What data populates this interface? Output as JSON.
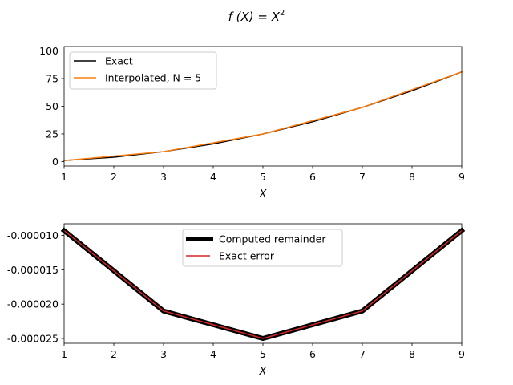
{
  "figure": {
    "title_prefix": "f (X) = X",
    "title_superscript": "2"
  },
  "chart_data": [
    {
      "type": "line",
      "xlabel": "X",
      "ylabel": "",
      "xlim": [
        1,
        9
      ],
      "ylim": [
        -4,
        104
      ],
      "xticks": [
        "1",
        "2",
        "3",
        "4",
        "5",
        "6",
        "7",
        "8",
        "9"
      ],
      "yticks": [
        "0",
        "25",
        "50",
        "75",
        "100"
      ],
      "yticks_values": [
        0,
        25,
        50,
        75,
        100
      ],
      "grid": false,
      "legend_position": "upper-left",
      "series": [
        {
          "name": "Exact",
          "color": "#000000",
          "x": [
            1,
            2,
            3,
            4,
            5,
            6,
            7,
            8,
            9
          ],
          "y": [
            1,
            4,
            9,
            16,
            25,
            36,
            49,
            64,
            81
          ]
        },
        {
          "name": "Interpolated, N = 5",
          "color": "#ff7f0e",
          "x": [
            1,
            3,
            5,
            7,
            9
          ],
          "y": [
            1,
            9,
            25,
            49,
            81
          ]
        }
      ]
    },
    {
      "type": "line",
      "xlabel": "X",
      "ylabel": "",
      "xlim": [
        1,
        9
      ],
      "ylim": [
        -2.57e-05,
        -8.3e-06
      ],
      "xticks": [
        "1",
        "2",
        "3",
        "4",
        "5",
        "6",
        "7",
        "8",
        "9"
      ],
      "yticks": [
        "-0.000010",
        "-0.000015",
        "-0.000020",
        "-0.000025"
      ],
      "yticks_values": [
        -1e-05,
        -1.5e-05,
        -2e-05,
        -2.5e-05
      ],
      "grid": false,
      "legend_position": "upper-center",
      "series": [
        {
          "name": "Computed remainder",
          "color": "#000000",
          "x": [
            1,
            3,
            5,
            7,
            9
          ],
          "y": [
            -9.3e-06,
            -2.1e-05,
            -2.5e-05,
            -2.1e-05,
            -9.3e-06
          ]
        },
        {
          "name": "Exact error",
          "color": "#d62728",
          "x": [
            1,
            3,
            5,
            7,
            9
          ],
          "y": [
            -9.3e-06,
            -2.1e-05,
            -2.5e-05,
            -2.1e-05,
            -9.3e-06
          ]
        }
      ]
    }
  ]
}
